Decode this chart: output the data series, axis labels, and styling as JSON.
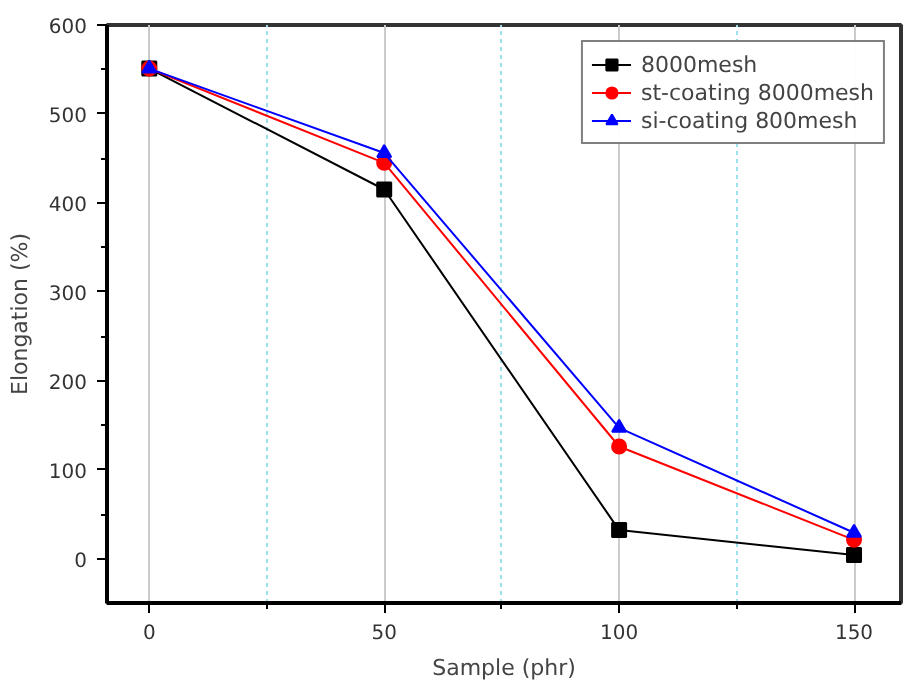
{
  "chart_data": {
    "type": "line",
    "xlabel": "Sample (phr)",
    "ylabel": "Elongation (%)",
    "x": [
      0,
      50,
      100,
      150
    ],
    "series": [
      {
        "name": "8000mesh",
        "color": "#000000",
        "marker": "square",
        "values": [
          551,
          415,
          32,
          4
        ]
      },
      {
        "name": "st-coating 8000mesh",
        "color": "#ff0000",
        "marker": "circle",
        "values": [
          551,
          445,
          126,
          21
        ]
      },
      {
        "name": "si-coating 800mesh",
        "color": "#0000ff",
        "marker": "triangle",
        "values": [
          551,
          456,
          147,
          29
        ]
      }
    ],
    "xlim": [
      -9,
      160
    ],
    "ylim": [
      -50,
      600
    ],
    "xticks": [
      0,
      {
        "value": 25,
        "label": null
      },
      50,
      {
        "value": 75,
        "label": null
      },
      100,
      {
        "value": 125,
        "label": null
      },
      150
    ],
    "yticks": [
      0,
      100,
      200,
      300,
      400,
      500,
      600
    ],
    "grid": "x",
    "legend": "top right",
    "line_style": "solid"
  }
}
